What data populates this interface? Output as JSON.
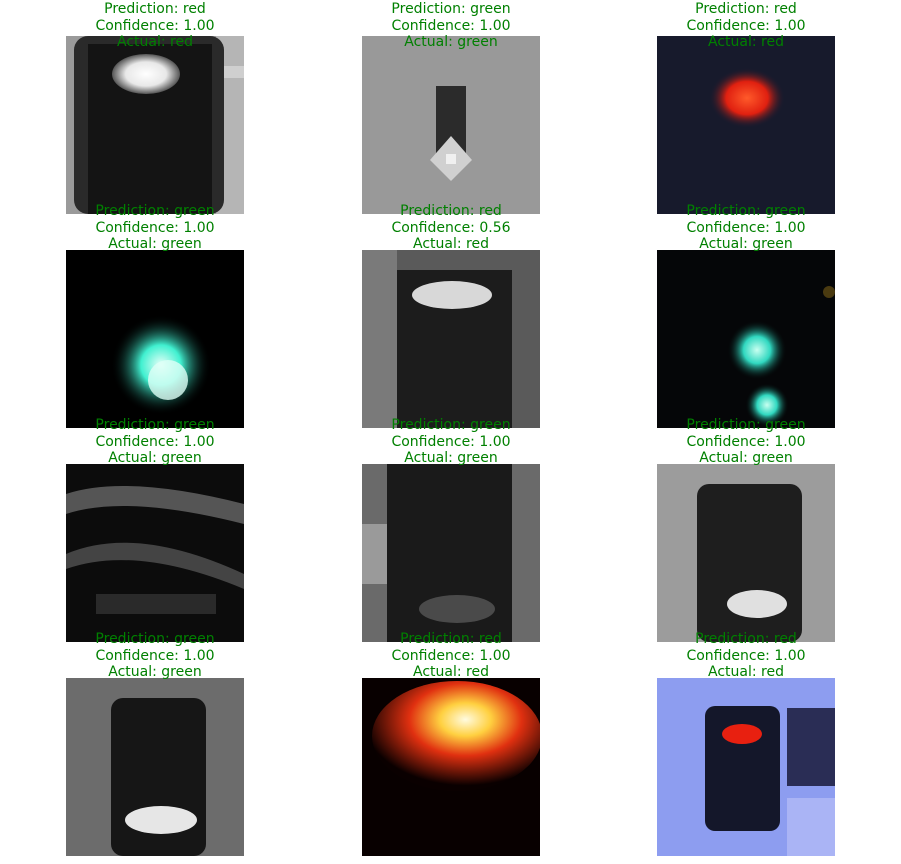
{
  "colors": {
    "caption_text": "#008000",
    "background": "#ffffff"
  },
  "grid": [
    {
      "prediction": "Prediction: red",
      "confidence": "Confidence: 1.00",
      "actual": "Actual: red",
      "image": "traffic-light-white-lamp-top"
    },
    {
      "prediction": "Prediction: green",
      "confidence": "Confidence: 1.00",
      "actual": "Actual: green",
      "image": "traffic-light-gray-dim"
    },
    {
      "prediction": "Prediction: red",
      "confidence": "Confidence: 1.00",
      "actual": "Actual: red",
      "image": "traffic-light-red-glow"
    },
    {
      "prediction": "Prediction: green",
      "confidence": "Confidence: 1.00",
      "actual": "Actual: green",
      "image": "traffic-light-cyan-glow"
    },
    {
      "prediction": "Prediction: red",
      "confidence": "Confidence: 0.56",
      "actual": "Actual: red",
      "image": "traffic-light-gray-top-lamp"
    },
    {
      "prediction": "Prediction: green",
      "confidence": "Confidence: 1.00",
      "actual": "Actual: green",
      "image": "traffic-light-cyan-double-glow"
    },
    {
      "prediction": "Prediction: green",
      "confidence": "Confidence: 1.00",
      "actual": "Actual: green",
      "image": "traffic-light-dark-striped"
    },
    {
      "prediction": "Prediction: green",
      "confidence": "Confidence: 1.00",
      "actual": "Actual: green",
      "image": "traffic-light-dark-bottom-lamp"
    },
    {
      "prediction": "Prediction: green",
      "confidence": "Confidence: 1.00",
      "actual": "Actual: green",
      "image": "traffic-light-gray-bottom-lamp"
    },
    {
      "prediction": "Prediction: green",
      "confidence": "Confidence: 1.00",
      "actual": "Actual: green",
      "image": "traffic-light-gray-bottom-white"
    },
    {
      "prediction": "Prediction: red",
      "confidence": "Confidence: 1.00",
      "actual": "Actual: red",
      "image": "traffic-light-orange-blob"
    },
    {
      "prediction": "Prediction: red",
      "confidence": "Confidence: 1.00",
      "actual": "Actual: red",
      "image": "traffic-light-blue-bg-red"
    }
  ]
}
